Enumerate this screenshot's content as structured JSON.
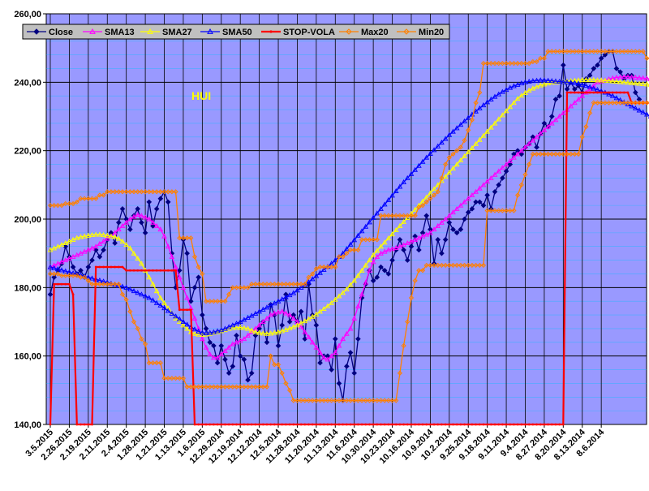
{
  "chart_data": {
    "type": "line",
    "title": "HUI",
    "xlabel": "",
    "ylabel": "",
    "ylim": [
      140,
      260
    ],
    "y_ticks": [
      "140,00",
      "160,00",
      "180,00",
      "200,00",
      "220,00",
      "240,00",
      "260,00"
    ],
    "x_tick_labels": [
      "3.5.2015",
      "2.26.2015",
      "2.19.2015",
      "2.11.2015",
      "2.4.2015",
      "1.28.2015",
      "1.21.2015",
      "1.13.2015",
      "1.6.2015",
      "12.29.2014",
      "12.19.2014",
      "12.12.2014",
      "12.5.2014",
      "11.28.2014",
      "11.20.2014",
      "11.13.2014",
      "11.6.2014",
      "10.30.2014",
      "10.23.2014",
      "10.16.2014",
      "10.9.2014",
      "10.2.2014",
      "9.25.2014",
      "9.18.2014",
      "9.11.2014",
      "9.4.2014",
      "8.27.2014",
      "8.20.2014",
      "8.13.2014",
      "8.6.2014"
    ],
    "x_order": "dates descend left to right, 5 trading days per tick",
    "grid": true,
    "legend_position": "top-left",
    "colors": {
      "plot_background": "#9999ff",
      "frame": "#000000",
      "legend_background": "#c0c0c0",
      "title": "#ffff00"
    },
    "series": [
      {
        "name": "Close",
        "color": "#000080",
        "marker": "diamond",
        "values": [
          178,
          183,
          185,
          187,
          192,
          189,
          186,
          184,
          185,
          183,
          186,
          188,
          191,
          189,
          191,
          194,
          196,
          193,
          199,
          203,
          200,
          197,
          201,
          203,
          199,
          196,
          205,
          198,
          203,
          206,
          208,
          205,
          190,
          180,
          185,
          194,
          190,
          176,
          180,
          183,
          172,
          168,
          164,
          163,
          158,
          163,
          159,
          155,
          157,
          166,
          160,
          159,
          153,
          155,
          166,
          168,
          170,
          164,
          175,
          172,
          163,
          169,
          178,
          170,
          172,
          170,
          173,
          165,
          181,
          172,
          169,
          158,
          160,
          160,
          156,
          165,
          152,
          147,
          157,
          161,
          155,
          165,
          177,
          181,
          185,
          182,
          183,
          186,
          185,
          184,
          188,
          191,
          194,
          191,
          188,
          192,
          195,
          191,
          196,
          201,
          197,
          187,
          194,
          190,
          194,
          199,
          197,
          196,
          197,
          200,
          202,
          203,
          205,
          205,
          204,
          207,
          203,
          208,
          210,
          212,
          214,
          216,
          219,
          220,
          219,
          221,
          222,
          224,
          221,
          225,
          228,
          227,
          230,
          235,
          236,
          245,
          238,
          240,
          238,
          239,
          237,
          241,
          242,
          244,
          245,
          247,
          248,
          249,
          249,
          244,
          243,
          241,
          242,
          242,
          237,
          235
        ]
      },
      {
        "name": "SMA13",
        "color": "#ff00ff",
        "marker": "triangle",
        "values": [
          186,
          186.5,
          187,
          187.5,
          188,
          188.5,
          189,
          189.5,
          190,
          190.5,
          191,
          191.5,
          192,
          192.8,
          193.5,
          194.3,
          195,
          196,
          197,
          198,
          199,
          200,
          200.7,
          201.3,
          201,
          200.5,
          200,
          199,
          198,
          197,
          195,
          192,
          189,
          186,
          183,
          180,
          177,
          174,
          171,
          168,
          165,
          162.5,
          160.5,
          159.5,
          159.5,
          160.5,
          161.5,
          162.5,
          163.5,
          164,
          164.5,
          165,
          166,
          167,
          168,
          169,
          170,
          171,
          172,
          172.5,
          172.8,
          173,
          172.5,
          172,
          171,
          170,
          168.5,
          167,
          165.5,
          164,
          162.5,
          161,
          159.5,
          159,
          160,
          161,
          163,
          165,
          166.5,
          168,
          171,
          174.5,
          178,
          181.5,
          185,
          187.5,
          189,
          190,
          190.5,
          191,
          191.3,
          191.6,
          192,
          192.5,
          193,
          193.5,
          194,
          194.5,
          195,
          195.5,
          196,
          197,
          198,
          199,
          200,
          201,
          202,
          203,
          204,
          205,
          206,
          207,
          208,
          209,
          210,
          211,
          212,
          213,
          214,
          215,
          216,
          217,
          218,
          219,
          220,
          221,
          222,
          223,
          224,
          225,
          226,
          227,
          228,
          229,
          230,
          231,
          232,
          233,
          234,
          235,
          236,
          237,
          238,
          239,
          240,
          240.3,
          240.6,
          240.9,
          241.2,
          241.4,
          241.5,
          241.6,
          241.6,
          241.5,
          241.4,
          241.3,
          241.2,
          241.1,
          240.9,
          240.7,
          240.5,
          240.4,
          240.2,
          240
        ]
      },
      {
        "name": "SMA27",
        "color": "#ffff00",
        "marker": "triangle",
        "values": [
          191,
          191.5,
          192,
          192.5,
          193,
          193.5,
          194,
          194.5,
          194.8,
          195,
          195.2,
          195.4,
          195.5,
          195.5,
          195.4,
          195.2,
          195,
          194.8,
          194.3,
          193.5,
          192.5,
          191.5,
          190,
          188.5,
          187,
          185,
          183,
          181,
          179,
          177,
          175.5,
          174,
          172.5,
          171,
          170,
          169,
          168,
          167,
          166.5,
          166.3,
          166.2,
          166.3,
          166.5,
          166.8,
          167,
          167.3,
          167.6,
          168,
          168.2,
          168.3,
          168.3,
          168.2,
          168,
          167.5,
          167,
          166.8,
          166.6,
          166.5,
          166.6,
          166.8,
          167,
          167.3,
          167.7,
          168.1,
          168.5,
          169,
          169.6,
          170.2,
          170.8,
          171.5,
          172.2,
          173,
          173.8,
          174.6,
          175.5,
          176.5,
          177.5,
          178.5,
          179.5,
          180.8,
          182,
          183.5,
          185,
          186.5,
          188,
          189.5,
          190.8,
          192,
          193.2,
          194.4,
          195.6,
          196.8,
          198,
          199.2,
          200.4,
          201.6,
          202.8,
          204,
          205.2,
          206.4,
          207.6,
          208.8,
          210,
          211.2,
          212.4,
          213.6,
          214.8,
          216,
          217.2,
          218.4,
          219.6,
          220.8,
          222,
          223.2,
          224.4,
          225.6,
          226.8,
          228,
          229.2,
          230.4,
          231.6,
          232.8,
          234,
          235.2,
          236.1,
          236.9,
          237.6,
          238.2,
          238.7,
          239.1,
          239.4,
          239.7,
          239.9,
          240,
          240.1,
          240.2,
          240.3,
          240.4,
          240.5,
          240.6,
          240.7,
          240.7,
          240.7,
          240.7,
          240.6,
          240.6,
          240.5,
          240.4,
          240.3,
          240.2,
          240.1,
          240,
          239.9,
          239.8,
          239.7,
          239.6,
          239.5,
          239.4,
          239.3,
          239.2,
          239.1,
          239.1,
          239
        ]
      },
      {
        "name": "SMA50",
        "color": "#0000ff",
        "marker": "triangle",
        "values": [
          186,
          185.7,
          185.4,
          185.1,
          184.8,
          184.5,
          184.2,
          183.9,
          183.6,
          183.3,
          183,
          182.7,
          182.4,
          182.1,
          181.8,
          181.5,
          181.2,
          180.9,
          180.6,
          180.3,
          180,
          179.5,
          179,
          178.5,
          178,
          177.5,
          177,
          176.3,
          175.5,
          174.8,
          174,
          173.2,
          172.4,
          171.6,
          170.8,
          170,
          169.2,
          168.5,
          167.8,
          167.2,
          166.8,
          166.7,
          166.8,
          167,
          167.3,
          167.6,
          168,
          168.5,
          169,
          169.5,
          170,
          170.6,
          171.2,
          171.8,
          172.4,
          173,
          173.6,
          174.2,
          174.8,
          175.4,
          176,
          176.6,
          177.2,
          177.8,
          178.4,
          179.2,
          180,
          180.8,
          181.6,
          182.5,
          183.4,
          184.3,
          185.2,
          186.1,
          187,
          188,
          189,
          190,
          191.3,
          192.6,
          193.9,
          195.2,
          196.5,
          197.8,
          199.1,
          200.4,
          201.7,
          203,
          204.3,
          205.6,
          206.9,
          208.2,
          209.5,
          210.8,
          212,
          213.2,
          214.4,
          215.6,
          216.8,
          218,
          219.1,
          220.2,
          221.3,
          222.4,
          223.5,
          224.6,
          225.6,
          226.6,
          227.6,
          228.6,
          229.6,
          230.6,
          231.5,
          232.4,
          233.3,
          234.2,
          235,
          235.8,
          236.5,
          237.2,
          237.8,
          238.4,
          238.9,
          239.3,
          239.7,
          240,
          240.2,
          240.4,
          240.5,
          240.6,
          240.6,
          240.5,
          240.4,
          240.3,
          240.2,
          240.1,
          240,
          239.9,
          239.8,
          239.6,
          239.3,
          239,
          238.6,
          238.2,
          237.8,
          237.4,
          237,
          236.5,
          236,
          235.4,
          234.8,
          234.2,
          233.6,
          233,
          232.4,
          231.8,
          231.2,
          230.6,
          230,
          229.4,
          229,
          228.8
        ]
      },
      {
        "name": "STOP-VOLA",
        "color": "#ff0000",
        "marker": "dot",
        "values": [
          140,
          181,
          181,
          181,
          181,
          181,
          178,
          140,
          140,
          140,
          140,
          140,
          186,
          186,
          186,
          186,
          186,
          186,
          186,
          186,
          185,
          185,
          185,
          185,
          185,
          185,
          185,
          185,
          185,
          185,
          185,
          185,
          185,
          185,
          173.5,
          173.5,
          173.5,
          173.5,
          140,
          140,
          140,
          140,
          140,
          140,
          140,
          140,
          140,
          140,
          140,
          140,
          140,
          140,
          140,
          140,
          140,
          140,
          140,
          140,
          140,
          140,
          140,
          140,
          140,
          140,
          140,
          140,
          140,
          140,
          140,
          140,
          140,
          140,
          140,
          140,
          140,
          140,
          140,
          140,
          140,
          140,
          140,
          140,
          140,
          140,
          140,
          140,
          140,
          140,
          140,
          140,
          140,
          140,
          140,
          140,
          140,
          140,
          140,
          140,
          140,
          140,
          140,
          140,
          140,
          140,
          140,
          140,
          140,
          140,
          140,
          140,
          140,
          140,
          140,
          140,
          140,
          140,
          140,
          140,
          140,
          140,
          140,
          140,
          140,
          140,
          140,
          140,
          140,
          140,
          140,
          140,
          140,
          140,
          140,
          140,
          140,
          140,
          237,
          237,
          237,
          237,
          237,
          237,
          237,
          237,
          237,
          237,
          237,
          237,
          237,
          237,
          237,
          237,
          237,
          234,
          234,
          234,
          234,
          234,
          234,
          234,
          234,
          234
        ]
      },
      {
        "name": "Max20",
        "color": "#ff8000",
        "marker": "diamond",
        "values": [
          204,
          204,
          204,
          204,
          204.5,
          204.5,
          204.5,
          205,
          206,
          206,
          206,
          206,
          206,
          207,
          207,
          208,
          208,
          208,
          208,
          208,
          208,
          208,
          208,
          208,
          208,
          208,
          208,
          208,
          208,
          208,
          208,
          208,
          208,
          208,
          194.5,
          194.5,
          194.5,
          194.5,
          189,
          186,
          184,
          176,
          176,
          176,
          176,
          176,
          176,
          178,
          180,
          180,
          180,
          180,
          180,
          181,
          181,
          181,
          181,
          181,
          181,
          181,
          181,
          181,
          181,
          181,
          181,
          181,
          181,
          181,
          183,
          184,
          185.5,
          186,
          186,
          186,
          186,
          186,
          189,
          189,
          190,
          191,
          191,
          191,
          194,
          194,
          194,
          194,
          194,
          201,
          201,
          201,
          201,
          201,
          201,
          201,
          201,
          201,
          201,
          203.5,
          204,
          205,
          206,
          207,
          208,
          212,
          216,
          218,
          219,
          220,
          221,
          223,
          226,
          229,
          234,
          237,
          245.5,
          245.5,
          245.5,
          245.5,
          245.5,
          245.5,
          245.5,
          245.5,
          245.5,
          245.5,
          245.5,
          245.5,
          245.5,
          246,
          246,
          247,
          247,
          249,
          249,
          249,
          249,
          249,
          249,
          249,
          249,
          249,
          249,
          249,
          249,
          249,
          249,
          249,
          249,
          249,
          249,
          249,
          249,
          249,
          249,
          249,
          249,
          249,
          249,
          247,
          247,
          247,
          247
        ]
      },
      {
        "name": "Min20",
        "color": "#ff8000",
        "marker": "diamond",
        "values": [
          184,
          184,
          184,
          183.5,
          183.5,
          183.5,
          183.5,
          183.5,
          183,
          183,
          182,
          181,
          181,
          181,
          181,
          181,
          181,
          181,
          181,
          178,
          176.5,
          173,
          170,
          168,
          165,
          163.5,
          158,
          158,
          158,
          158,
          153.5,
          153.5,
          153.5,
          153.5,
          153.5,
          153.5,
          151,
          151,
          151,
          151,
          151,
          151,
          151,
          151,
          151,
          151,
          151,
          151,
          151,
          151,
          151,
          151,
          151,
          151,
          151,
          151,
          151,
          151,
          160,
          157.5,
          157.5,
          155,
          152,
          150,
          147,
          147,
          147,
          147,
          147,
          147,
          147,
          147,
          147,
          147,
          147,
          147,
          147,
          147,
          147,
          147,
          147,
          147,
          147,
          147,
          147,
          147,
          147,
          147,
          147,
          147,
          147,
          147,
          155,
          163,
          170,
          177,
          182,
          185,
          185,
          186.5,
          186.5,
          186.5,
          186.5,
          186.5,
          186.5,
          186.5,
          186.5,
          186.5,
          186.5,
          186.5,
          186.5,
          186.5,
          186.5,
          186.5,
          186.5,
          202.5,
          202.5,
          202.5,
          202.5,
          202.5,
          202.5,
          202.5,
          202.5,
          207,
          210,
          213,
          216,
          219,
          219,
          219,
          219,
          219,
          219,
          219,
          219,
          219,
          219,
          219,
          219,
          219,
          224,
          227,
          231,
          234,
          234,
          234,
          234,
          234,
          234,
          234,
          234,
          234,
          234,
          234,
          234,
          234,
          234,
          234,
          234,
          234,
          234,
          234,
          234,
          234,
          234,
          234,
          234,
          234,
          234
        ]
      }
    ]
  }
}
